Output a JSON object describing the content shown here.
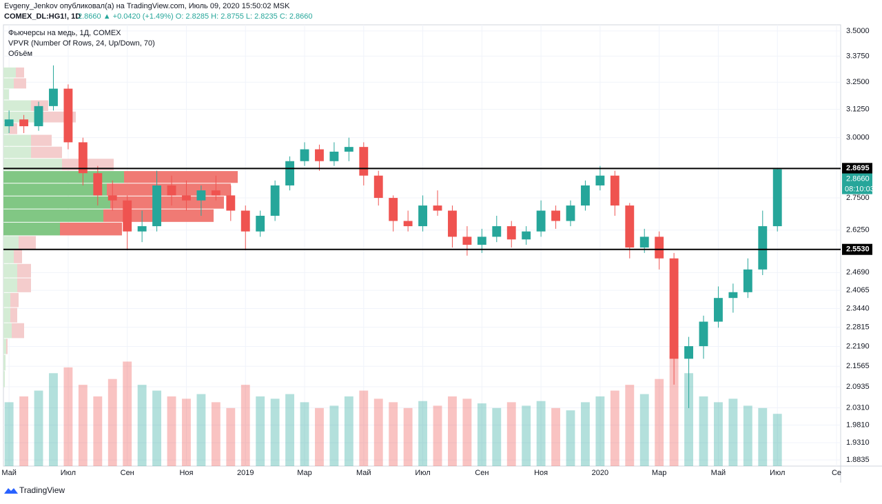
{
  "header": {
    "author": "Evgeny_Jenkov опубликовал(а) на TradingView.com, Июль 09, 2020 15:50:02 MSK",
    "symbol": "COMEX_DL:HG1!, 1D",
    "quote": "2.8660 ▲ +0.0420 (+1.49%) O: 2.8285 H: 2.8755 L: 2.8235 C: 2.8660"
  },
  "legend": [
    "Фьючерсы на медь, 1Д, COMEX",
    "VPVR (Number Of Rows, 24, Up/Down, 70)",
    "Объём"
  ],
  "footer": "TradingView",
  "chart_data": {
    "type": "candlestick",
    "log": true,
    "grid": true,
    "up_color": "#26a69a",
    "down_color": "#ef5350",
    "xlim": [
      -0.19,
      28.14
    ],
    "xticks": [
      {
        "value": 0,
        "label": "Май"
      },
      {
        "value": 2,
        "label": "Июл"
      },
      {
        "value": 4,
        "label": "Сен"
      },
      {
        "value": 6,
        "label": "Ноя"
      },
      {
        "value": 8,
        "label": "2019"
      },
      {
        "value": 10,
        "label": "Мар"
      },
      {
        "value": 12,
        "label": "Май"
      },
      {
        "value": 14,
        "label": "Июл"
      },
      {
        "value": 16,
        "label": "Сен"
      },
      {
        "value": 18,
        "label": "Ноя"
      },
      {
        "value": 20,
        "label": "2020"
      },
      {
        "value": 22,
        "label": "Мар"
      },
      {
        "value": 24,
        "label": "Май"
      },
      {
        "value": 26,
        "label": "Июл"
      },
      {
        "value": 28,
        "label": "Се"
      }
    ],
    "ylim": [
      1.867,
      3.531
    ],
    "yticks": [
      {
        "value": 3.5,
        "label": "3.5000"
      },
      {
        "value": 3.375,
        "label": "3.3750"
      },
      {
        "value": 3.25,
        "label": "3.2500"
      },
      {
        "value": 3.125,
        "label": "3.1250"
      },
      {
        "value": 3.0,
        "label": "3.0000"
      },
      {
        "value": 2.75,
        "label": "2.7500"
      },
      {
        "value": 2.625,
        "label": "2.6250"
      },
      {
        "value": 2.469,
        "label": "2.4690"
      },
      {
        "value": 2.4065,
        "label": "2.4065"
      },
      {
        "value": 2.344,
        "label": "2.3440"
      },
      {
        "value": 2.2815,
        "label": "2.2815"
      },
      {
        "value": 2.219,
        "label": "2.2190"
      },
      {
        "value": 2.1565,
        "label": "2.1565"
      },
      {
        "value": 2.0935,
        "label": "2.0935"
      },
      {
        "value": 2.031,
        "label": "2.0310"
      },
      {
        "value": 1.981,
        "label": "1.9810"
      },
      {
        "value": 1.931,
        "label": "1.9310"
      },
      {
        "value": 1.8835,
        "label": "1.8835"
      }
    ],
    "hlines": [
      {
        "value": 2.8695,
        "label": "2.8695"
      },
      {
        "value": 2.553,
        "label": "2.5530"
      }
    ],
    "last": {
      "value": 2.866,
      "label": "2.8660"
    },
    "countdown": "08:10:03",
    "x": [
      0,
      0.5,
      1,
      1.5,
      2,
      2.5,
      3,
      3.5,
      4,
      4.5,
      5,
      5.5,
      6,
      6.5,
      7,
      7.5,
      8,
      8.5,
      9,
      9.5,
      10,
      10.5,
      11,
      11.5,
      12,
      12.5,
      13,
      13.5,
      14,
      14.5,
      15,
      15.5,
      16,
      16.5,
      17,
      17.5,
      18,
      18.5,
      19,
      19.5,
      20,
      20.5,
      21,
      21.5,
      22,
      22.5,
      23,
      23.5,
      24,
      24.5,
      25,
      25.5,
      26
    ],
    "open": [
      3.05,
      3.08,
      3.05,
      3.14,
      3.22,
      2.98,
      2.85,
      2.76,
      2.74,
      2.62,
      2.64,
      2.8,
      2.76,
      2.74,
      2.78,
      2.76,
      2.7,
      2.62,
      2.68,
      2.8,
      2.9,
      2.95,
      2.9,
      2.94,
      2.96,
      2.84,
      2.75,
      2.66,
      2.64,
      2.72,
      2.7,
      2.6,
      2.57,
      2.6,
      2.64,
      2.59,
      2.62,
      2.7,
      2.66,
      2.72,
      2.8,
      2.84,
      2.72,
      2.56,
      2.6,
      2.52,
      2.18,
      2.22,
      2.3,
      2.38,
      2.4,
      2.48,
      2.64
    ],
    "high": [
      3.12,
      3.1,
      3.16,
      3.33,
      3.24,
      3.0,
      2.88,
      2.82,
      2.76,
      2.7,
      2.86,
      2.84,
      2.82,
      2.8,
      2.84,
      2.8,
      2.72,
      2.7,
      2.82,
      2.92,
      2.98,
      2.97,
      2.98,
      3.0,
      2.98,
      2.86,
      2.76,
      2.7,
      2.76,
      2.78,
      2.72,
      2.64,
      2.63,
      2.68,
      2.66,
      2.64,
      2.74,
      2.72,
      2.74,
      2.82,
      2.88,
      2.86,
      2.73,
      2.63,
      2.62,
      2.54,
      2.25,
      2.32,
      2.42,
      2.43,
      2.52,
      2.7,
      2.87
    ],
    "low": [
      3.02,
      3.02,
      3.03,
      3.12,
      2.95,
      2.8,
      2.72,
      2.7,
      2.55,
      2.58,
      2.62,
      2.72,
      2.7,
      2.68,
      2.74,
      2.66,
      2.55,
      2.6,
      2.66,
      2.78,
      2.88,
      2.86,
      2.88,
      2.9,
      2.8,
      2.72,
      2.62,
      2.62,
      2.62,
      2.68,
      2.56,
      2.53,
      2.54,
      2.58,
      2.56,
      2.57,
      2.6,
      2.63,
      2.64,
      2.7,
      2.78,
      2.68,
      2.52,
      2.54,
      2.48,
      2.1,
      2.03,
      2.18,
      2.28,
      2.33,
      2.38,
      2.46,
      2.62
    ],
    "close": [
      3.08,
      3.05,
      3.14,
      3.22,
      2.98,
      2.85,
      2.76,
      2.74,
      2.62,
      2.64,
      2.8,
      2.76,
      2.74,
      2.78,
      2.76,
      2.7,
      2.62,
      2.68,
      2.8,
      2.9,
      2.95,
      2.9,
      2.94,
      2.96,
      2.84,
      2.75,
      2.66,
      2.64,
      2.72,
      2.7,
      2.6,
      2.57,
      2.6,
      2.64,
      2.59,
      2.62,
      2.7,
      2.66,
      2.72,
      2.8,
      2.84,
      2.72,
      2.56,
      2.6,
      2.52,
      2.18,
      2.22,
      2.3,
      2.38,
      2.4,
      2.48,
      2.64,
      2.866
    ],
    "volume": [
      55,
      60,
      65,
      80,
      85,
      70,
      60,
      75,
      90,
      70,
      65,
      60,
      58,
      62,
      55,
      50,
      70,
      60,
      58,
      62,
      55,
      50,
      52,
      60,
      65,
      58,
      55,
      50,
      56,
      52,
      60,
      58,
      54,
      50,
      55,
      52,
      56,
      50,
      48,
      55,
      60,
      65,
      70,
      62,
      75,
      95,
      80,
      60,
      55,
      58,
      52,
      50,
      45
    ],
    "profile": {
      "price_range": [
        2.09,
        3.32
      ],
      "value_area": [
        9,
        13
      ],
      "up": [
        18,
        15,
        8,
        40,
        45,
        8,
        40,
        40,
        85,
        175,
        150,
        155,
        145,
        82,
        22,
        15,
        20,
        20,
        10,
        10,
        12,
        4,
        3,
        2
      ],
      "down": [
        12,
        18,
        0,
        25,
        60,
        12,
        30,
        45,
        75,
        165,
        180,
        165,
        160,
        90,
        25,
        12,
        20,
        20,
        12,
        10,
        18,
        2,
        0,
        0
      ]
    }
  }
}
